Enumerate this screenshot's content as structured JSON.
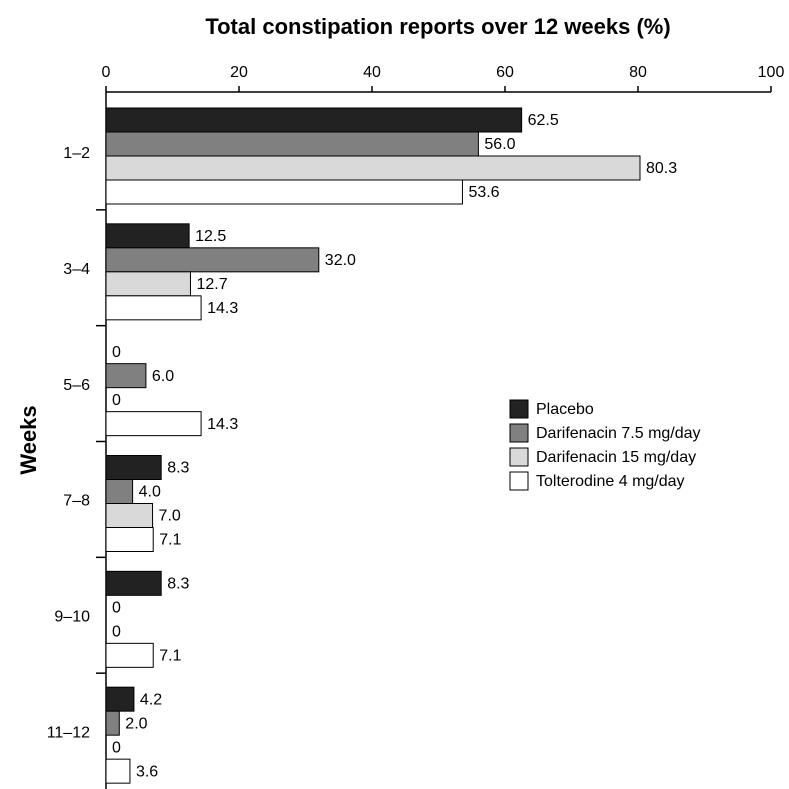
{
  "chart_data": {
    "type": "bar",
    "orientation": "horizontal",
    "title": "Total constipation reports over 12 weeks (%)",
    "y_label": "Weeks",
    "categories": [
      "1–2",
      "3–4",
      "5–6",
      "7–8",
      "9–10",
      "11–12"
    ],
    "series": [
      {
        "name": "Placebo",
        "color": "#222222",
        "values": [
          62.5,
          12.5,
          0,
          8.3,
          8.3,
          4.2
        ],
        "value_labels": [
          "62.5",
          "12.5",
          "0",
          "8.3",
          "8.3",
          "4.2"
        ]
      },
      {
        "name": "Darifenacin 7.5 mg/day",
        "color": "#808080",
        "values": [
          56.0,
          32.0,
          6.0,
          4.0,
          0,
          2.0
        ],
        "value_labels": [
          "56.0",
          "32.0",
          "6.0",
          "4.0",
          "0",
          "2.0"
        ]
      },
      {
        "name": "Darifenacin 15 mg/day",
        "color": "#d9d9d9",
        "values": [
          80.3,
          12.7,
          0,
          7.0,
          0,
          0
        ],
        "value_labels": [
          "80.3",
          "12.7",
          "0",
          "7.0",
          "0",
          "0"
        ]
      },
      {
        "name": "Tolterodine 4 mg/day",
        "color": "#ffffff",
        "values": [
          53.6,
          14.3,
          14.3,
          7.1,
          7.1,
          3.6
        ],
        "value_labels": [
          "53.6",
          "14.3",
          "14.3",
          "7.1",
          "7.1",
          "3.6"
        ]
      }
    ],
    "xlim": [
      0,
      100
    ],
    "xticks": [
      0,
      20,
      40,
      60,
      80,
      100
    ],
    "grid": false,
    "legend": "right"
  }
}
